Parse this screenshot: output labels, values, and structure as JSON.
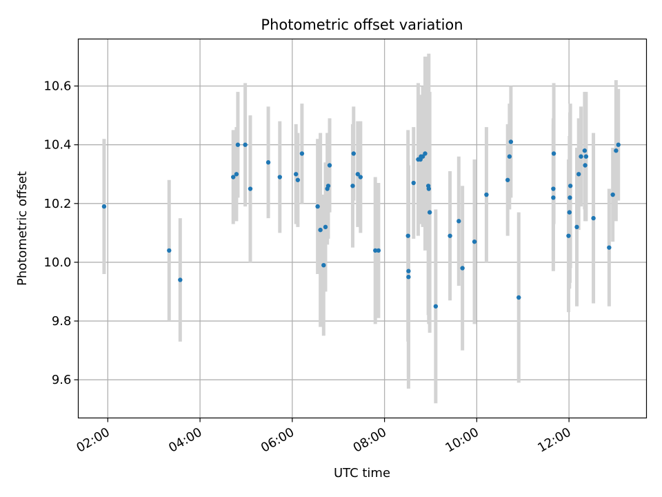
{
  "chart_data": {
    "type": "scatter",
    "title": "Photometric offset variation",
    "xlabel": "UTC time",
    "ylabel": "Photometric offset",
    "x_unit": "UTC hour",
    "xlim": [
      1.36,
      13.68
    ],
    "ylim": [
      9.47,
      10.76
    ],
    "x_ticks": [
      {
        "value": 2,
        "label": "02:00"
      },
      {
        "value": 4,
        "label": "04:00"
      },
      {
        "value": 6,
        "label": "06:00"
      },
      {
        "value": 8,
        "label": "08:00"
      },
      {
        "value": 10,
        "label": "10:00"
      },
      {
        "value": 12,
        "label": "12:00"
      }
    ],
    "y_ticks": [
      {
        "value": 9.6,
        "label": "9.6"
      },
      {
        "value": 9.8,
        "label": "9.8"
      },
      {
        "value": 10.0,
        "label": "10.0"
      },
      {
        "value": 10.2,
        "label": "10.2"
      },
      {
        "value": 10.4,
        "label": "10.4"
      },
      {
        "value": 10.6,
        "label": "10.6"
      }
    ],
    "grid": true,
    "colors": {
      "points": "#1f77b4",
      "error_bars": "#d3d3d3",
      "grid": "#b0b0b0"
    },
    "series": [
      {
        "x": [
          1.92,
          3.33,
          3.57,
          4.72,
          4.79,
          4.82,
          4.98,
          5.09,
          5.48,
          5.73,
          6.08,
          6.12,
          6.21,
          6.55,
          6.61,
          6.68,
          6.72,
          6.76,
          6.78,
          6.81,
          7.31,
          7.33,
          7.42,
          7.48,
          7.8,
          7.87,
          8.51,
          8.52,
          8.52,
          8.63,
          8.73,
          8.78,
          8.79,
          8.83,
          8.88,
          8.95,
          8.96,
          8.98,
          9.11,
          9.42,
          9.61,
          9.69,
          9.95,
          10.21,
          10.67,
          10.71,
          10.74,
          10.91,
          11.66,
          11.66,
          11.67,
          11.99,
          12.01,
          12.02,
          12.03,
          12.17,
          12.21,
          12.26,
          12.34,
          12.35,
          12.37,
          12.53,
          12.87,
          12.95,
          13.02,
          13.07
        ],
        "y": [
          10.19,
          10.04,
          9.94,
          10.29,
          10.3,
          10.4,
          10.4,
          10.25,
          10.34,
          10.29,
          10.3,
          10.28,
          10.37,
          10.19,
          10.11,
          9.99,
          10.12,
          10.25,
          10.26,
          10.33,
          10.26,
          10.37,
          10.3,
          10.29,
          10.04,
          10.04,
          10.09,
          9.97,
          9.95,
          10.27,
          10.35,
          10.35,
          10.36,
          10.36,
          10.37,
          10.26,
          10.25,
          10.17,
          9.85,
          10.09,
          10.14,
          9.98,
          10.07,
          10.23,
          10.28,
          10.36,
          10.41,
          9.88,
          10.25,
          10.22,
          10.37,
          10.09,
          10.17,
          10.22,
          10.26,
          10.12,
          10.3,
          10.36,
          10.38,
          10.33,
          10.36,
          10.15,
          10.05,
          10.23,
          10.38,
          10.4
        ],
        "yerr": [
          0.23,
          0.24,
          0.21,
          0.16,
          0.16,
          0.18,
          0.21,
          0.25,
          0.19,
          0.19,
          0.17,
          0.16,
          0.17,
          0.23,
          0.33,
          0.24,
          0.22,
          0.19,
          0.18,
          0.16,
          0.21,
          0.16,
          0.18,
          0.19,
          0.25,
          0.23,
          0.36,
          0.36,
          0.38,
          0.19,
          0.26,
          0.22,
          0.21,
          0.24,
          0.33,
          0.44,
          0.46,
          0.41,
          0.33,
          0.22,
          0.22,
          0.28,
          0.28,
          0.23,
          0.19,
          0.18,
          0.19,
          0.29,
          0.24,
          0.25,
          0.24,
          0.26,
          0.26,
          0.29,
          0.28,
          0.27,
          0.19,
          0.17,
          0.2,
          0.19,
          0.22,
          0.29,
          0.2,
          0.16,
          0.24,
          0.19
        ]
      }
    ]
  }
}
